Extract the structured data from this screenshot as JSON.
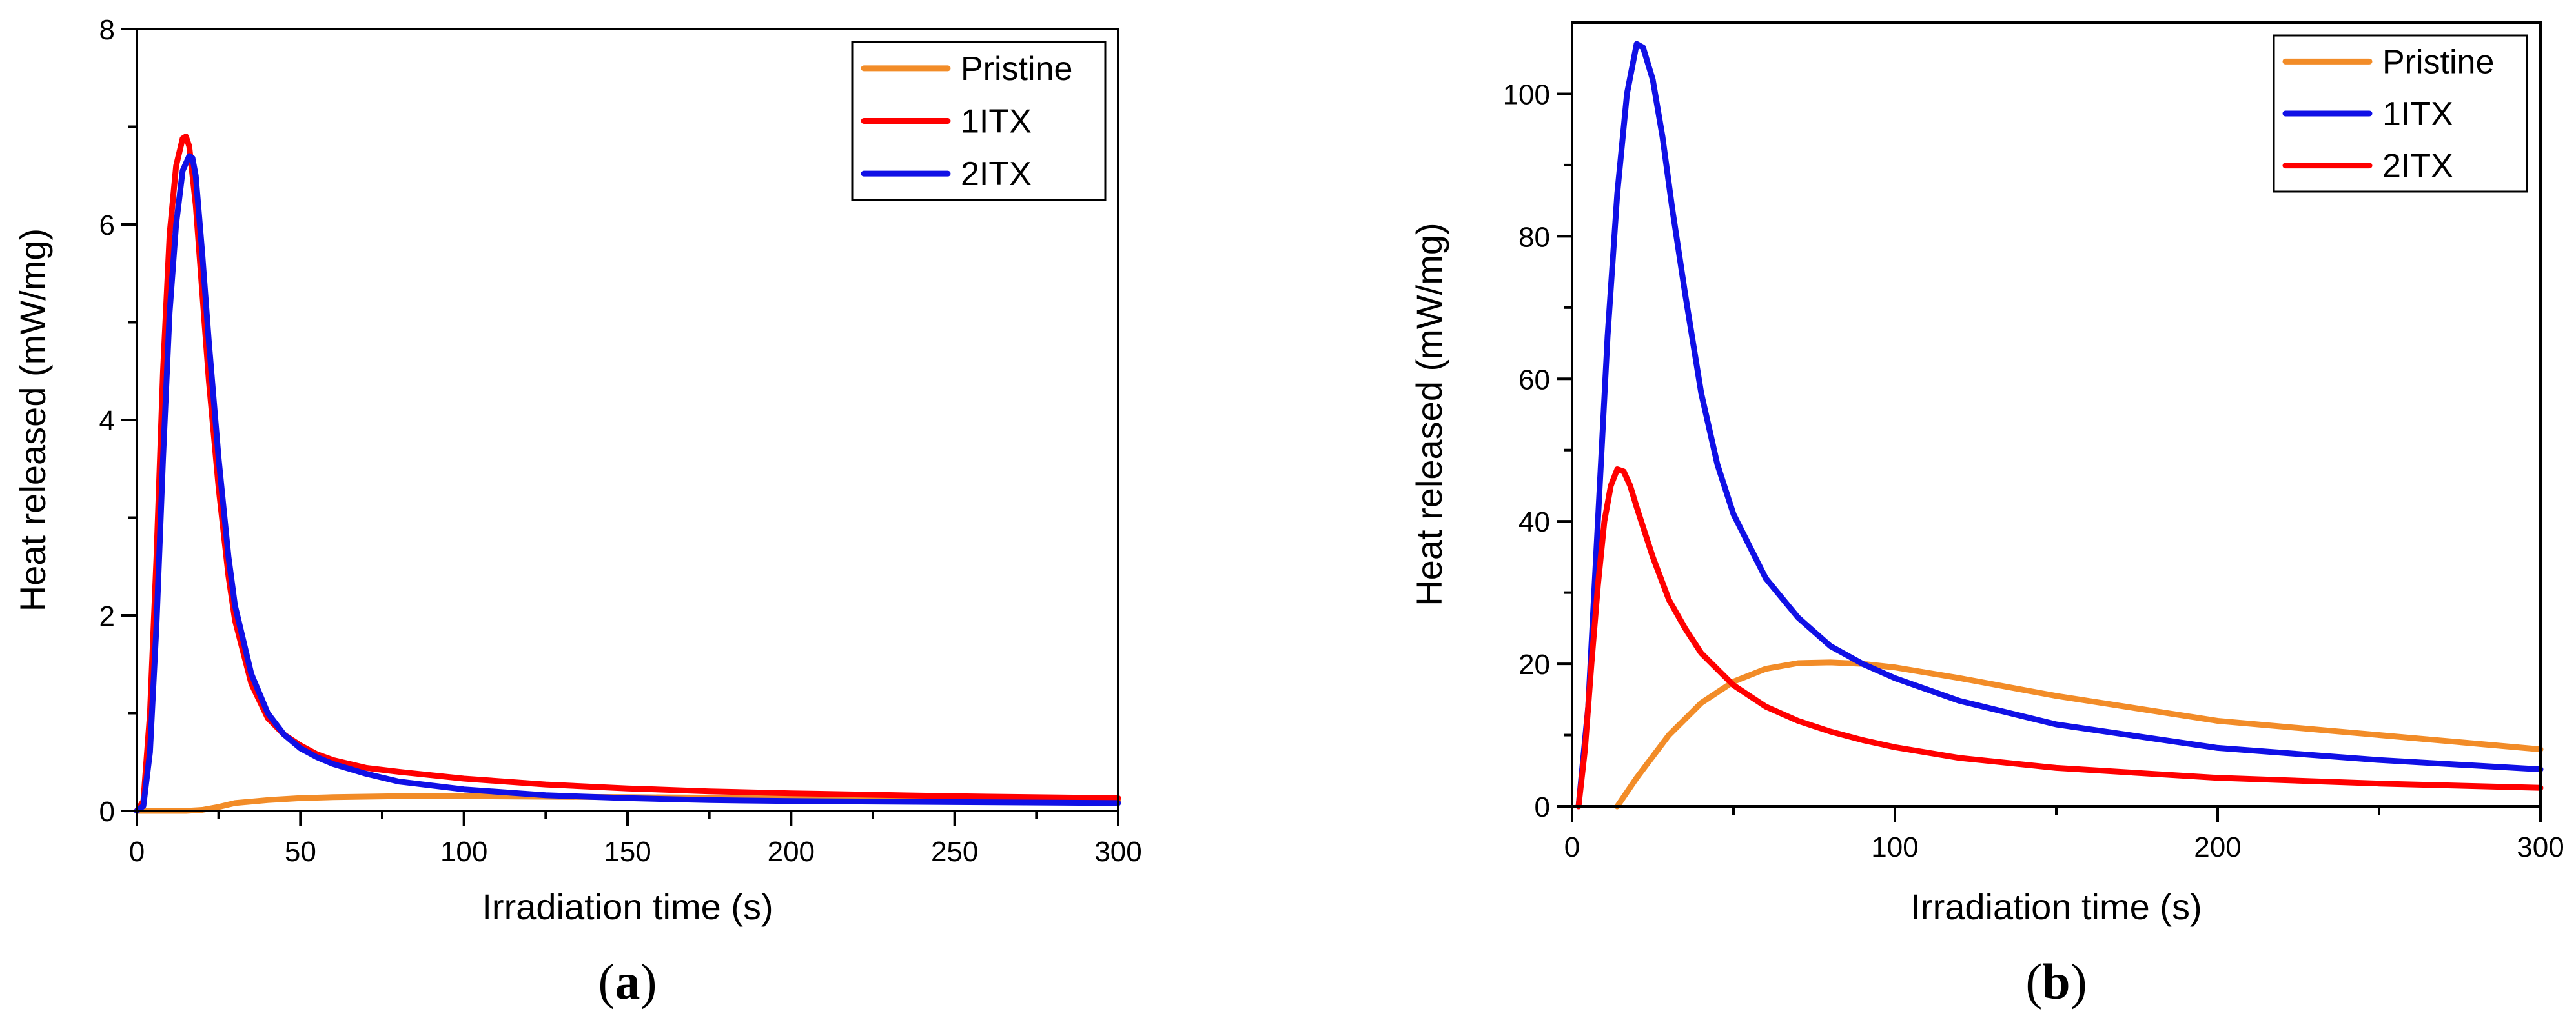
{
  "chart_data": [
    {
      "id": "a",
      "type": "line",
      "caption": "a",
      "xlabel": "Irradiation time (s)",
      "ylabel": "Heat released (mW/mg)",
      "xlim": [
        0,
        300
      ],
      "ylim": [
        0,
        8
      ],
      "xticks": [
        0,
        50,
        100,
        150,
        200,
        250,
        300
      ],
      "yticks": [
        0,
        2,
        4,
        6,
        8
      ],
      "xtick_labels": [
        "0",
        "50",
        "100",
        "150",
        "200",
        "250",
        "300"
      ],
      "ytick_labels": [
        "0",
        "2",
        "4",
        "6",
        "8"
      ],
      "legend_position": "top-right",
      "series": [
        {
          "name": "Pristine",
          "color": "#F28C28",
          "x": [
            0,
            10,
            15,
            20,
            25,
            30,
            40,
            50,
            60,
            80,
            100,
            150,
            200,
            250,
            300
          ],
          "y": [
            0,
            0,
            0,
            0.01,
            0.04,
            0.08,
            0.11,
            0.13,
            0.14,
            0.15,
            0.15,
            0.14,
            0.13,
            0.11,
            0.1
          ]
        },
        {
          "name": "1ITX",
          "color": "#FF0000",
          "x": [
            0,
            2,
            4,
            6,
            8,
            10,
            12,
            14,
            15,
            16,
            18,
            20,
            22,
            25,
            28,
            30,
            35,
            40,
            45,
            50,
            55,
            60,
            70,
            80,
            100,
            125,
            150,
            175,
            200,
            250,
            300
          ],
          "y": [
            0,
            0.1,
            1.0,
            2.6,
            4.5,
            5.9,
            6.6,
            6.88,
            6.9,
            6.8,
            6.2,
            5.3,
            4.4,
            3.3,
            2.4,
            1.95,
            1.3,
            0.95,
            0.78,
            0.67,
            0.58,
            0.52,
            0.44,
            0.4,
            0.33,
            0.27,
            0.23,
            0.2,
            0.18,
            0.15,
            0.13
          ]
        },
        {
          "name": "2ITX",
          "color": "#1010E6",
          "x": [
            0,
            2,
            4,
            6,
            8,
            10,
            12,
            14,
            16,
            17,
            18,
            20,
            22,
            25,
            28,
            30,
            35,
            40,
            45,
            50,
            55,
            60,
            70,
            80,
            100,
            125,
            150,
            175,
            200,
            250,
            300
          ],
          "y": [
            0,
            0.05,
            0.6,
            1.9,
            3.6,
            5.1,
            6.0,
            6.55,
            6.7,
            6.68,
            6.5,
            5.7,
            4.8,
            3.6,
            2.6,
            2.1,
            1.4,
            1.0,
            0.78,
            0.64,
            0.55,
            0.48,
            0.38,
            0.3,
            0.22,
            0.16,
            0.13,
            0.11,
            0.1,
            0.09,
            0.08
          ]
        }
      ]
    },
    {
      "id": "b",
      "type": "line",
      "caption": "b",
      "xlabel": "Irradiation time (s)",
      "ylabel": "Heat released (mW/mg)",
      "xlim": [
        0,
        300
      ],
      "ylim": [
        0,
        110
      ],
      "xticks": [
        0,
        100,
        200,
        300
      ],
      "yticks": [
        0,
        20,
        40,
        60,
        80,
        100
      ],
      "xtick_labels": [
        "0",
        "100",
        "200",
        "300"
      ],
      "ytick_labels": [
        "0",
        "20",
        "40",
        "60",
        "80",
        "100"
      ],
      "legend_position": "top-right",
      "series": [
        {
          "name": "Pristine",
          "color": "#F28C28",
          "x": [
            14,
            20,
            30,
            40,
            50,
            60,
            70,
            80,
            90,
            100,
            120,
            150,
            200,
            250,
            300
          ],
          "y": [
            0,
            4,
            10,
            14.5,
            17.5,
            19.3,
            20.1,
            20.2,
            20.0,
            19.5,
            18.0,
            15.5,
            12.0,
            10.0,
            8.0
          ]
        },
        {
          "name": "1ITX",
          "color": "#1010E6",
          "x": [
            2,
            5,
            8,
            11,
            14,
            17,
            20,
            22,
            25,
            28,
            31,
            35,
            40,
            45,
            50,
            60,
            70,
            80,
            90,
            100,
            120,
            150,
            200,
            250,
            300
          ],
          "y": [
            0,
            14,
            40,
            66,
            86,
            100,
            107,
            106.5,
            102,
            94,
            84,
            72,
            58,
            48,
            41,
            32,
            26.5,
            22.5,
            20.0,
            18.0,
            14.8,
            11.5,
            8.2,
            6.5,
            5.2
          ]
        },
        {
          "name": "2ITX",
          "color": "#FF0000",
          "x": [
            2,
            4,
            6,
            8,
            10,
            12,
            14,
            16,
            18,
            20,
            25,
            30,
            35,
            40,
            50,
            60,
            70,
            80,
            90,
            100,
            120,
            150,
            200,
            250,
            300
          ],
          "y": [
            0,
            8,
            20,
            31,
            40,
            45,
            47.3,
            47,
            45,
            42,
            35,
            29,
            25,
            21.5,
            17,
            14,
            12,
            10.5,
            9.3,
            8.3,
            6.8,
            5.4,
            4.0,
            3.2,
            2.6
          ]
        }
      ]
    }
  ]
}
